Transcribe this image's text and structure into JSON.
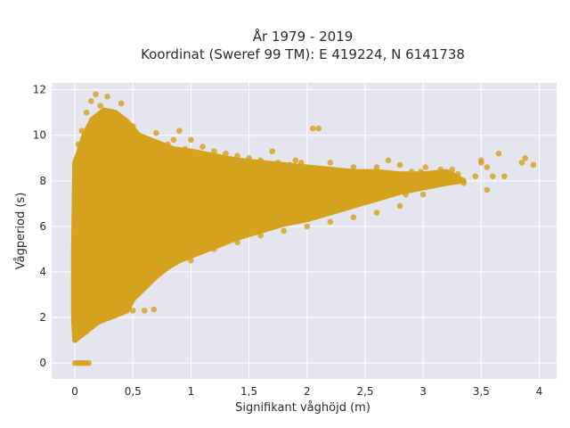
{
  "chart_data": {
    "type": "scatter",
    "title_line1": "År 1979 - 2019",
    "title_line2": "Koordinat (Sweref 99 TM): E 419224, N 6141738",
    "xlabel": "Signifikant våghöjd (m)",
    "ylabel": "Vågperiod (s)",
    "xlim": [
      -0.2,
      4.15
    ],
    "ylim": [
      -0.7,
      12.3
    ],
    "x_ticks": [
      {
        "value": 0,
        "label": "0"
      },
      {
        "value": 0.5,
        "label": "0,5"
      },
      {
        "value": 1,
        "label": "1"
      },
      {
        "value": 1.5,
        "label": "1,5"
      },
      {
        "value": 2,
        "label": "2"
      },
      {
        "value": 2.5,
        "label": "2,5"
      },
      {
        "value": 3,
        "label": "3"
      },
      {
        "value": 3.5,
        "label": "3,5"
      },
      {
        "value": 4,
        "label": "4"
      }
    ],
    "y_ticks": [
      {
        "value": 0,
        "label": "0"
      },
      {
        "value": 2,
        "label": "2"
      },
      {
        "value": 4,
        "label": "4"
      },
      {
        "value": 6,
        "label": "6"
      },
      {
        "value": 8,
        "label": "8"
      },
      {
        "value": 10,
        "label": "10"
      },
      {
        "value": 12,
        "label": "12"
      }
    ],
    "grid": true,
    "colors": {
      "marker": "#d4a21c",
      "plot_bg": "#e5e5f0",
      "grid": "#ffffff"
    },
    "points": [
      [
        0.0,
        0.0
      ],
      [
        0.02,
        0.0
      ],
      [
        0.04,
        0.0
      ],
      [
        0.06,
        0.0
      ],
      [
        0.08,
        0.0
      ],
      [
        0.1,
        0.0
      ],
      [
        0.12,
        0.0
      ],
      [
        0.01,
        1.2
      ],
      [
        0.05,
        1.3
      ],
      [
        0.1,
        1.4
      ],
      [
        0.15,
        1.6
      ],
      [
        0.2,
        1.8
      ],
      [
        0.25,
        1.9
      ],
      [
        0.3,
        2.0
      ],
      [
        0.35,
        2.1
      ],
      [
        0.4,
        2.2
      ],
      [
        0.5,
        2.3
      ],
      [
        0.6,
        2.3
      ],
      [
        0.68,
        2.35
      ],
      [
        0.01,
        8.9
      ],
      [
        0.03,
        9.6
      ],
      [
        0.06,
        10.2
      ],
      [
        0.1,
        11.0
      ],
      [
        0.14,
        11.5
      ],
      [
        0.18,
        11.8
      ],
      [
        0.22,
        11.3
      ],
      [
        0.28,
        11.7
      ],
      [
        0.32,
        11.0
      ],
      [
        0.36,
        10.8
      ],
      [
        0.4,
        11.4
      ],
      [
        0.46,
        10.2
      ],
      [
        0.5,
        10.4
      ],
      [
        0.55,
        9.8
      ],
      [
        0.6,
        9.7
      ],
      [
        0.66,
        9.6
      ],
      [
        0.7,
        10.1
      ],
      [
        0.75,
        9.0
      ],
      [
        0.8,
        9.6
      ],
      [
        0.85,
        9.8
      ],
      [
        0.9,
        10.2
      ],
      [
        0.95,
        9.4
      ],
      [
        1.0,
        9.8
      ],
      [
        1.05,
        9.2
      ],
      [
        1.1,
        9.5
      ],
      [
        1.2,
        9.3
      ],
      [
        1.3,
        9.2
      ],
      [
        1.4,
        9.1
      ],
      [
        1.5,
        9.0
      ],
      [
        1.6,
        8.9
      ],
      [
        1.7,
        9.3
      ],
      [
        1.75,
        8.8
      ],
      [
        1.85,
        8.7
      ],
      [
        1.95,
        8.8
      ],
      [
        2.05,
        10.3
      ],
      [
        2.1,
        10.3
      ],
      [
        0.0,
        3.0
      ],
      [
        0.0,
        4.5
      ],
      [
        0.0,
        6.0
      ],
      [
        0.0,
        7.5
      ],
      [
        0.02,
        2.5
      ],
      [
        0.03,
        5.5
      ],
      [
        0.05,
        7.0
      ],
      [
        0.08,
        8.5
      ],
      [
        0.1,
        4.0
      ],
      [
        0.12,
        6.5
      ],
      [
        0.15,
        3.5
      ],
      [
        0.18,
        9.0
      ],
      [
        0.2,
        5.0
      ],
      [
        0.22,
        7.8
      ],
      [
        0.25,
        2.8
      ],
      [
        0.28,
        6.2
      ],
      [
        0.3,
        8.8
      ],
      [
        0.32,
        4.2
      ],
      [
        0.35,
        9.5
      ],
      [
        0.38,
        5.8
      ],
      [
        0.4,
        3.2
      ],
      [
        0.42,
        7.2
      ],
      [
        0.45,
        8.4
      ],
      [
        0.48,
        4.8
      ],
      [
        0.5,
        6.8
      ],
      [
        0.52,
        9.2
      ],
      [
        0.55,
        3.8
      ],
      [
        0.58,
        5.4
      ],
      [
        0.6,
        7.6
      ],
      [
        0.62,
        8.9
      ],
      [
        0.65,
        4.4
      ],
      [
        0.68,
        6.4
      ],
      [
        0.7,
        8.2
      ],
      [
        0.72,
        3.9
      ],
      [
        0.75,
        5.9
      ],
      [
        0.78,
        7.4
      ],
      [
        0.8,
        8.6
      ],
      [
        0.82,
        4.6
      ],
      [
        0.85,
        6.6
      ],
      [
        0.88,
        9.1
      ],
      [
        0.9,
        4.7
      ],
      [
        0.92,
        5.6
      ],
      [
        0.95,
        7.1
      ],
      [
        0.98,
        8.3
      ],
      [
        1.0,
        4.5
      ],
      [
        1.02,
        6.0
      ],
      [
        1.05,
        7.7
      ],
      [
        1.08,
        8.7
      ],
      [
        1.1,
        4.9
      ],
      [
        1.12,
        5.3
      ],
      [
        1.15,
        6.9
      ],
      [
        1.18,
        8.1
      ],
      [
        1.2,
        5.0
      ],
      [
        1.25,
        6.3
      ],
      [
        1.3,
        7.5
      ],
      [
        1.35,
        8.5
      ],
      [
        1.4,
        5.3
      ],
      [
        1.45,
        6.1
      ],
      [
        1.5,
        7.3
      ],
      [
        1.55,
        8.2
      ],
      [
        1.6,
        5.6
      ],
      [
        1.65,
        6.5
      ],
      [
        1.7,
        7.4
      ],
      [
        1.75,
        8.4
      ],
      [
        1.8,
        5.8
      ],
      [
        1.85,
        6.7
      ],
      [
        1.9,
        7.6
      ],
      [
        1.95,
        8.3
      ],
      [
        2.0,
        6.0
      ],
      [
        2.05,
        6.9
      ],
      [
        2.1,
        7.7
      ],
      [
        2.15,
        8.1
      ],
      [
        2.2,
        6.2
      ],
      [
        2.25,
        7.0
      ],
      [
        2.3,
        7.8
      ],
      [
        2.35,
        8.2
      ],
      [
        2.4,
        6.4
      ],
      [
        2.45,
        7.1
      ],
      [
        2.5,
        7.5
      ],
      [
        2.55,
        8.0
      ],
      [
        2.6,
        6.6
      ],
      [
        2.65,
        7.3
      ],
      [
        2.7,
        7.7
      ],
      [
        2.75,
        8.0
      ],
      [
        2.8,
        6.9
      ],
      [
        2.85,
        7.4
      ],
      [
        2.9,
        7.6
      ],
      [
        2.95,
        8.1
      ],
      [
        3.0,
        7.4
      ],
      [
        3.05,
        7.9
      ],
      [
        3.1,
        8.0
      ],
      [
        3.15,
        8.5
      ],
      [
        3.2,
        8.1
      ],
      [
        3.25,
        8.3
      ],
      [
        3.3,
        8.3
      ],
      [
        3.35,
        7.9
      ],
      [
        3.5,
        8.9
      ],
      [
        3.5,
        8.8
      ],
      [
        3.55,
        8.6
      ],
      [
        3.6,
        8.2
      ],
      [
        3.65,
        9.2
      ],
      [
        3.7,
        8.2
      ],
      [
        3.85,
        8.8
      ],
      [
        3.88,
        9.0
      ],
      [
        3.95,
        8.7
      ],
      [
        2.98,
        8.4
      ],
      [
        3.02,
        8.6
      ],
      [
        3.08,
        8.2
      ],
      [
        2.7,
        8.9
      ],
      [
        2.8,
        8.7
      ],
      [
        2.9,
        8.4
      ],
      [
        2.6,
        8.6
      ],
      [
        2.5,
        8.3
      ],
      [
        2.0,
        8.5
      ],
      [
        2.2,
        8.8
      ],
      [
        2.4,
        8.6
      ],
      [
        1.9,
        8.9
      ],
      [
        3.45,
        8.2
      ],
      [
        3.55,
        7.6
      ],
      [
        3.25,
        8.5
      ]
    ]
  }
}
